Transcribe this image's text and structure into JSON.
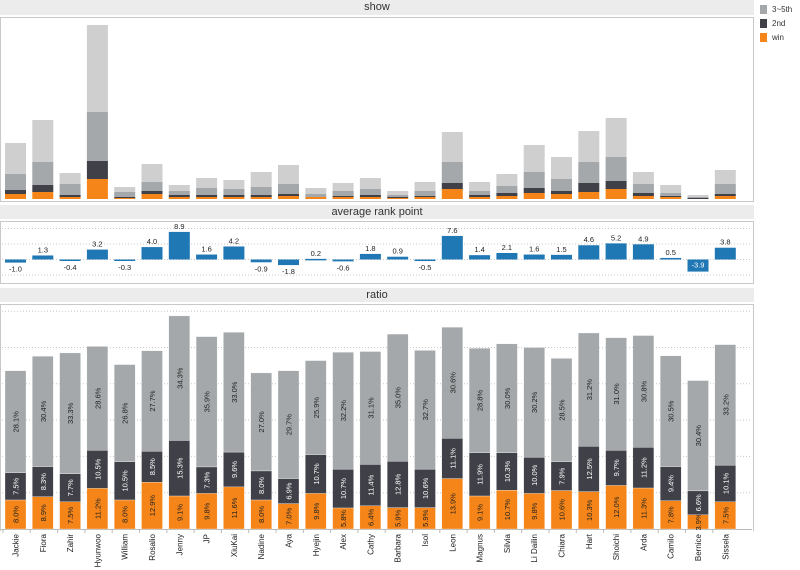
{
  "colors": {
    "win": "#f58518",
    "second": "#404048",
    "third_fifth": "#a4a8aa",
    "rest": "#cfcfcf",
    "rank_bar": "#1f77b4",
    "header_bg": "#ececed"
  },
  "legend": {
    "items": [
      {
        "label": "3~5th",
        "color": "#a4a8aa"
      },
      {
        "label": "2nd",
        "color": "#404048"
      },
      {
        "label": "win",
        "color": "#f58518"
      }
    ]
  },
  "chart_data": [
    {
      "type": "bar",
      "title": "show",
      "stacked": true,
      "note": "values estimated in relative units (no axis shown)",
      "categories": [
        "Jackie",
        "Fiora",
        "Zahir",
        "Hyunwoo",
        "William",
        "Rosalio",
        "Jenny",
        "JP",
        "XiuKai",
        "Nadine",
        "Aya",
        "Hyejin",
        "Alex",
        "Cathy",
        "Barbara",
        "Isol",
        "Leon",
        "Magnus",
        "Silvia",
        "Li Dailin",
        "Chiara",
        "Hart",
        "Shoichi",
        "Arda",
        "Camilo",
        "Bernice",
        "Sissela"
      ],
      "series": [
        {
          "name": "win",
          "values": [
            5,
            7,
            2,
            20,
            1,
            5,
            2,
            2,
            2,
            2,
            3,
            2,
            2,
            2,
            1,
            2,
            10,
            2,
            3,
            6,
            5,
            7,
            10,
            3,
            2,
            0,
            3
          ]
        },
        {
          "name": "2nd",
          "values": [
            4,
            7,
            2,
            18,
            1,
            3,
            2,
            2,
            2,
            2,
            2,
            0,
            1,
            2,
            1,
            1,
            6,
            2,
            3,
            5,
            3,
            9,
            8,
            3,
            1,
            1,
            2
          ]
        },
        {
          "name": "3~5th",
          "values": [
            16,
            23,
            11,
            49,
            5,
            9,
            4,
            7,
            6,
            8,
            10,
            3,
            5,
            6,
            2,
            5,
            21,
            4,
            7,
            16,
            12,
            21,
            24,
            9,
            3,
            1,
            10
          ]
        },
        {
          "name": "rest",
          "values": [
            31,
            42,
            11,
            87,
            5,
            18,
            6,
            10,
            9,
            15,
            19,
            6,
            8,
            11,
            4,
            9,
            30,
            9,
            12,
            27,
            22,
            31,
            39,
            12,
            8,
            2,
            14
          ]
        }
      ],
      "legend": [
        "3~5th",
        "2nd",
        "win"
      ],
      "legend_position": "top-right"
    },
    {
      "type": "bar",
      "title": "average rank point",
      "categories": [
        "Jackie",
        "Fiora",
        "Zahir",
        "Hyunwoo",
        "William",
        "Rosalio",
        "Jenny",
        "JP",
        "XiuKai",
        "Nadine",
        "Aya",
        "Hyejin",
        "Alex",
        "Cathy",
        "Barbara",
        "Isol",
        "Leon",
        "Magnus",
        "Silvia",
        "Li Dailin",
        "Chiara",
        "Hart",
        "Shoichi",
        "Arda",
        "Camilo",
        "Bernice",
        "Sissela"
      ],
      "values": [
        -1.0,
        1.3,
        -0.4,
        3.2,
        -0.3,
        4.0,
        8.9,
        1.6,
        4.2,
        -0.9,
        -1.8,
        0.2,
        -0.6,
        1.8,
        0.9,
        -0.5,
        7.6,
        1.4,
        2.1,
        1.6,
        1.5,
        4.6,
        5.2,
        4.9,
        0.5,
        -3.9,
        3.8
      ],
      "labels": [
        "-1.0",
        "1.3",
        "-0.4",
        "3.2",
        "-0.3",
        "4.0",
        "8.9",
        "1.6",
        "4.2",
        "-0.9",
        "-1.8",
        "0.2",
        "-0.6",
        "1.8",
        "0.9",
        "-0.5",
        "7.6",
        "1.4",
        "2.1",
        "1.6",
        "1.5",
        "4.6",
        "5.2",
        "4.9",
        "0.5",
        "-3.9",
        "3.8"
      ],
      "ylim": [
        -7,
        10
      ],
      "grid": true
    },
    {
      "type": "bar",
      "title": "ratio",
      "stacked": true,
      "categories": [
        "Jackie",
        "Fiora",
        "Zahir",
        "Hyunwoo",
        "William",
        "Rosalio",
        "Jenny",
        "JP",
        "XiuKai",
        "Nadine",
        "Aya",
        "Hyejin",
        "Alex",
        "Cathy",
        "Barbara",
        "Isol",
        "Leon",
        "Magnus",
        "Silvia",
        "Li Dailin",
        "Chiara",
        "Hart",
        "Shoichi",
        "Arda",
        "Camilo",
        "Bernice",
        "Sissela"
      ],
      "series": [
        {
          "name": "win",
          "values": [
            8.0,
            8.9,
            7.5,
            11.2,
            8.0,
            12.9,
            9.1,
            9.8,
            11.6,
            8.0,
            7.0,
            9.8,
            5.8,
            6.4,
            5.9,
            5.9,
            13.9,
            9.1,
            10.7,
            9.8,
            10.6,
            10.3,
            12.0,
            11.3,
            7.8,
            3.9,
            7.5
          ]
        },
        {
          "name": "2nd",
          "values": [
            7.5,
            8.3,
            7.7,
            10.5,
            10.5,
            8.5,
            15.3,
            7.3,
            9.6,
            8.0,
            6.9,
            10.7,
            10.7,
            11.4,
            12.8,
            10.6,
            11.1,
            11.9,
            10.3,
            10.0,
            7.9,
            12.5,
            9.7,
            11.2,
            9.4,
            6.6,
            10.1
          ]
        },
        {
          "name": "3~5th",
          "values": [
            28.1,
            30.4,
            33.3,
            28.6,
            26.8,
            27.7,
            34.3,
            35.9,
            33.0,
            27.0,
            29.7,
            25.9,
            32.2,
            31.1,
            35.0,
            32.7,
            30.6,
            28.8,
            30.0,
            30.2,
            28.5,
            31.2,
            31.0,
            30.8,
            30.5,
            30.4,
            33.2
          ]
        }
      ],
      "ylim": [
        0,
        60
      ],
      "unit": "%",
      "grid": true
    }
  ]
}
